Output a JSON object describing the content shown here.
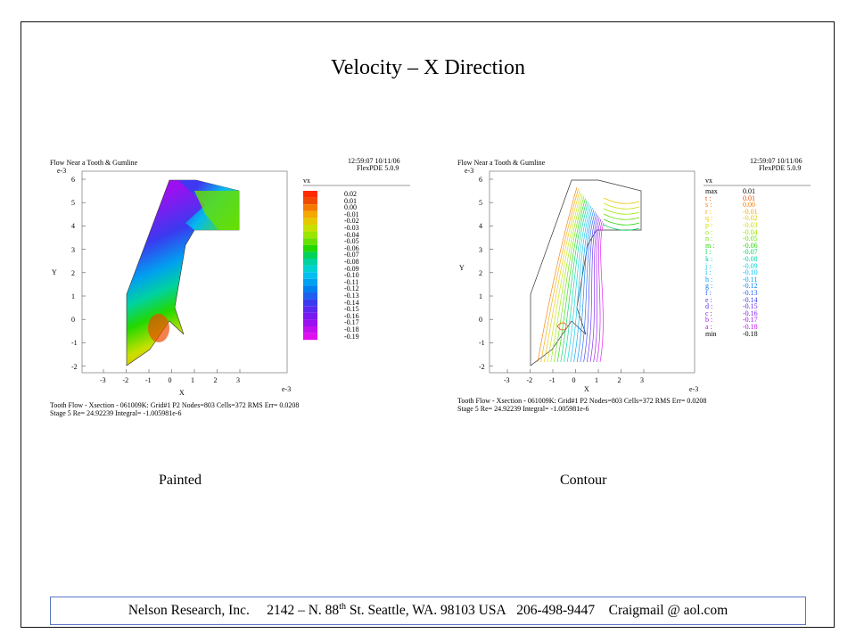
{
  "slide": {
    "title": "Velocity – X Direction"
  },
  "plots": [
    {
      "caption": "Painted",
      "header_title": "Flow Near a Tooth & Gumline",
      "timestamp": "12:59:07 10/11/06",
      "software": "FlexPDE 5.0.9",
      "y_exp": "e-3",
      "x_exp": "e-3",
      "x_label": "X",
      "y_label": "Y",
      "x_ticks": [
        "-3",
        "-2",
        "-1",
        "0",
        "1",
        "2",
        "3"
      ],
      "y_ticks": [
        "6",
        "5",
        "4",
        "3",
        "2",
        "1",
        "0",
        "-1",
        "-2"
      ],
      "legend_title": "vx",
      "legend_values": [
        "0.02",
        "0.01",
        "0.00",
        "-0.01",
        "-0.02",
        "-0.03",
        "-0.04",
        "-0.05",
        "-0.06",
        "-0.07",
        "-0.08",
        "-0.09",
        "-0.10",
        "-0.11",
        "-0.12",
        "-0.13",
        "-0.14",
        "-0.15",
        "-0.16",
        "-0.17",
        "-0.18",
        "-0.19"
      ],
      "info_line1": "Tooth Flow - Xsection - 061009K:  Grid#1  P2  Nodes=803  Cells=372  RMS Err= 0.0208",
      "info_line2": "Stage 5   Re= 24.92239   Integral= -1.005981e-6"
    },
    {
      "caption": "Contour",
      "header_title": "Flow Near a Tooth & Gumline",
      "timestamp": "12:59:07 10/11/06",
      "software": "FlexPDE 5.0.9",
      "y_exp": "e-3",
      "x_exp": "e-3",
      "x_label": "X",
      "y_label": "Y",
      "x_ticks": [
        "-3",
        "-2",
        "-1",
        "0",
        "1",
        "2",
        "3"
      ],
      "y_ticks": [
        "6",
        "5",
        "4",
        "3",
        "2",
        "1",
        "0",
        "-1",
        "-2"
      ],
      "legend_title": "vx",
      "legend_letters": [
        "max",
        "t :",
        "s :",
        "r :",
        "q :",
        "p :",
        "o :",
        "n :",
        "m :",
        "l :",
        "k :",
        "j :",
        "i :",
        "h :",
        "g :",
        "f :",
        "e :",
        "d :",
        "c :",
        "b :",
        "a :",
        "min"
      ],
      "legend_values": [
        "0.01",
        "0.01",
        "0.00",
        "-0.01",
        "-0.02",
        "-0.03",
        "-0.04",
        "-0.05",
        "-0.06",
        "-0.07",
        "-0.08",
        "-0.09",
        "-0.10",
        "-0.11",
        "-0.12",
        "-0.13",
        "-0.14",
        "-0.15",
        "-0.16",
        "-0.17",
        "-0.18",
        "-0.18"
      ],
      "info_line1": "Tooth Flow - Xsection - 061009K:  Grid#1  P2  Nodes=803  Cells=372  RMS Err= 0.0208",
      "info_line2": "Stage 5   Re= 24.92239   Integral= -1.005981e-6"
    }
  ],
  "footer": {
    "company": "Nelson Research, Inc.",
    "address_pre": "2142 – N. 88",
    "address_sup": "th",
    "address_post": " St. Seattle, WA. 98103  USA",
    "phone": "206-498-9447",
    "email": "Craigmail @ aol.com"
  },
  "colors": {
    "legend_scale": [
      "#ff2a00",
      "#f04a00",
      "#f57a00",
      "#f5a800",
      "#e6c800",
      "#c8e000",
      "#9ae600",
      "#66e000",
      "#22d800",
      "#00d25a",
      "#00d2a0",
      "#00d2d2",
      "#00c0f0",
      "#00a0f0",
      "#0080f0",
      "#2060f0",
      "#3a3af0",
      "#5a28f0",
      "#7a18f0",
      "#9a10f0",
      "#c010f0",
      "#e010f0"
    ],
    "footer_border": "#5a77c8"
  }
}
